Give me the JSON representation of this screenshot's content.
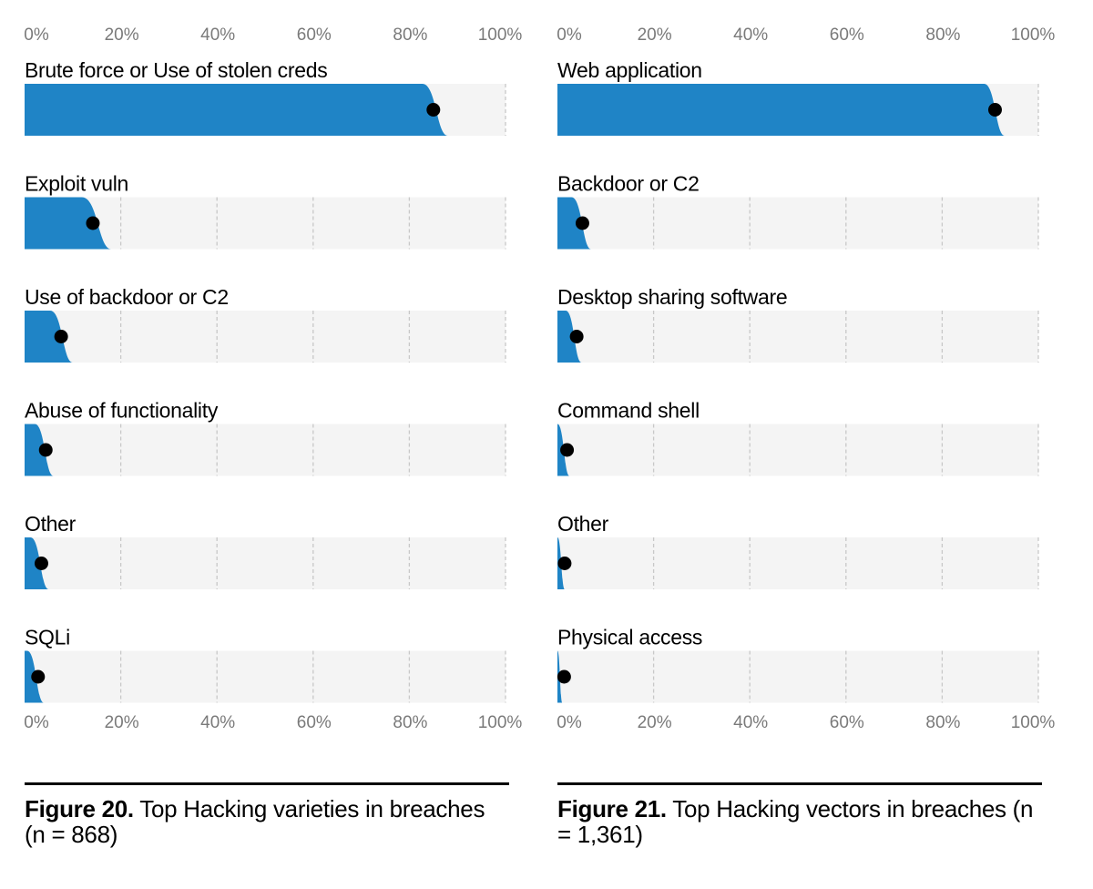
{
  "colors": {
    "bar": "#1f84c6",
    "track": "#f4f4f4",
    "grid": "#c8c8c8",
    "tick_text": "#7a7a7a",
    "label_text": "#000000",
    "dot": "#000000"
  },
  "captions": {
    "left": {
      "figure_label": "Figure 20.",
      "text": " Top Hacking varieties in breaches (n = 868)"
    },
    "right": {
      "figure_label": "Figure 21.",
      "text": " Top Hacking vectors in breaches (n = 1,361)"
    }
  },
  "chart_data": [
    {
      "type": "bar",
      "orientation": "horizontal",
      "title": "Top Hacking varieties in breaches (n = 868)",
      "xlim": [
        0,
        100
      ],
      "ticks": [
        "0%",
        "20%",
        "40%",
        "60%",
        "80%",
        "100%"
      ],
      "grid": true,
      "categories": [
        "Brute force or Use of stolen creds",
        "Exploit vuln",
        "Use of backdoor or C2",
        "Abuse of functionality",
        "Other",
        "SQLi"
      ],
      "values": [
        85,
        14.2,
        7.6,
        4.4,
        3.5,
        2.8
      ],
      "band_upper": [
        88,
        18,
        10,
        6,
        5,
        4
      ]
    },
    {
      "type": "bar",
      "orientation": "horizontal",
      "title": "Top Hacking vectors in breaches (n = 1,361)",
      "xlim": [
        0,
        100
      ],
      "ticks": [
        "0%",
        "20%",
        "40%",
        "60%",
        "80%",
        "100%"
      ],
      "grid": true,
      "categories": [
        "Web application",
        "Backdoor or C2",
        "Desktop sharing software",
        "Command shell",
        "Other",
        "Physical access"
      ],
      "values": [
        91,
        5.2,
        4,
        2,
        1.5,
        1.4
      ],
      "band_upper": [
        93,
        7,
        5,
        2.5,
        1.5,
        1
      ]
    }
  ]
}
